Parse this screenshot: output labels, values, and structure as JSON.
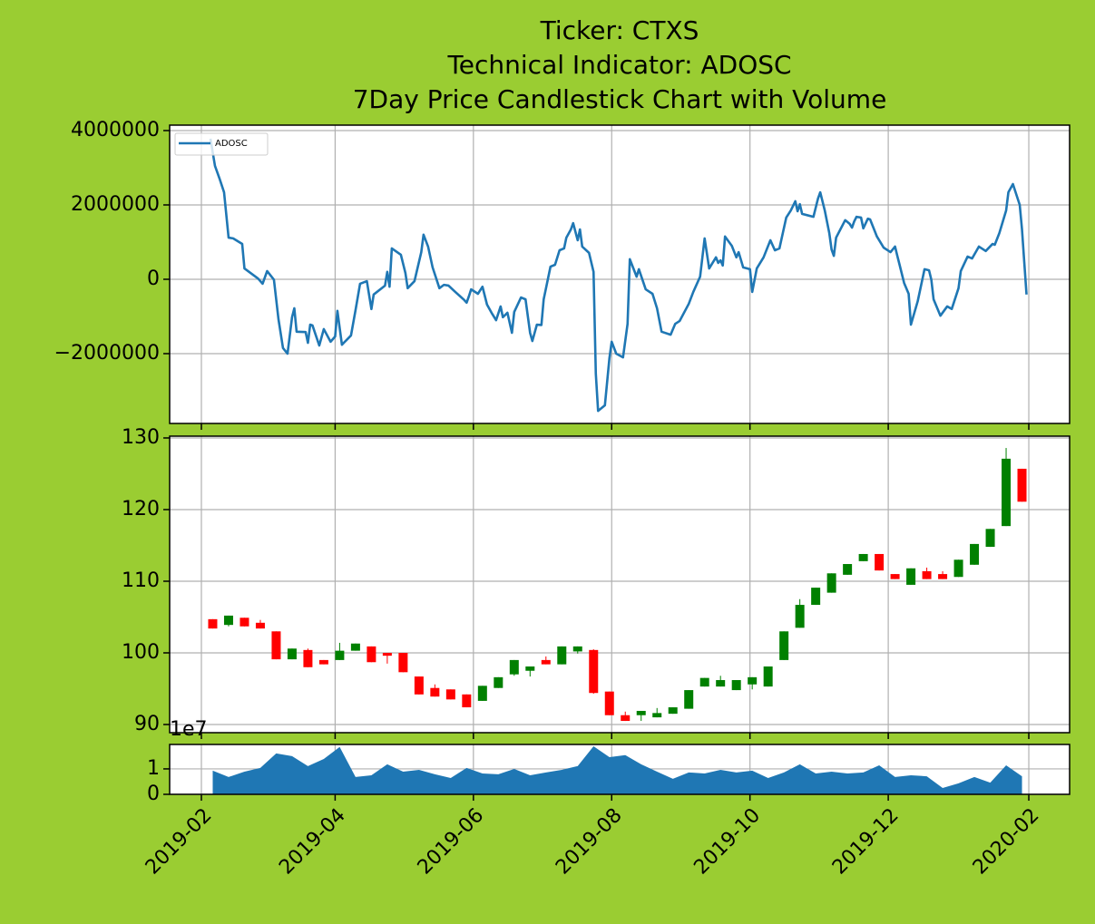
{
  "chart_data": [
    {
      "type": "line",
      "title": [
        "Ticker: CTXS",
        "Technical Indicator: ADOSC",
        "7Day Price Candlestick Chart with Volume"
      ],
      "x": [
        17932,
        17934,
        17936,
        17938,
        17940,
        17942,
        17946,
        17947,
        17953,
        17955,
        17957,
        17960,
        17962,
        17964,
        17966,
        17968,
        17969,
        17970,
        17974,
        17975,
        17976,
        17977,
        17980,
        17982,
        17985,
        17987,
        17988,
        17990,
        17994,
        17996,
        17998,
        18001,
        18003,
        18004,
        18009,
        18010,
        18011,
        18012,
        18016,
        18018,
        18019,
        18022,
        18025,
        18026,
        18028,
        18030,
        18033,
        18035,
        18037,
        18040,
        18044,
        18045,
        18046,
        18047,
        18050,
        18052,
        18054,
        18056,
        18058,
        18060,
        18061,
        18063,
        18065,
        18066,
        18069,
        18071,
        18073,
        18074,
        18076,
        18078,
        18079,
        18082,
        18084,
        18086,
        18088,
        18089,
        18091,
        18092,
        18094,
        18095,
        18096,
        18099,
        18101,
        18102,
        18103,
        18106,
        18108,
        18109,
        18111,
        18114,
        18116,
        18117,
        18120,
        18121,
        18124,
        18127,
        18129,
        18131,
        18135,
        18137,
        18139,
        18143,
        18145,
        18148,
        18150,
        18152,
        18155,
        18156,
        18157,
        18158,
        18159,
        18162,
        18164,
        18165,
        18167,
        18170,
        18171,
        18173,
        18176,
        18179,
        18181,
        18183,
        18186,
        18188,
        18190,
        18191,
        18192,
        18193,
        18198,
        18200,
        18201,
        18203,
        18205,
        18206,
        18207,
        18208,
        18212,
        18214,
        18215,
        18216,
        18217,
        18219,
        18220,
        18222,
        18223,
        18226,
        18229,
        18232,
        18234,
        18235,
        18236,
        18238,
        18240,
        18241,
        18244,
        18247,
        18249,
        18250,
        18251,
        18254,
        18257,
        18259,
        18262,
        18263,
        18266,
        18268,
        18271,
        18274,
        18277,
        18278,
        18280,
        18283,
        18284,
        18286,
        18289,
        18290,
        18291,
        18292
      ],
      "series": [
        {
          "name": "ADOSC",
          "color": "#1f77b4",
          "values": [
            3780000,
            3050000,
            2710000,
            2340000,
            1120000,
            1100000,
            950000,
            290000,
            20000,
            -120000,
            220000,
            -10000,
            -1070000,
            -1850000,
            -2000000,
            -1020000,
            -780000,
            -1410000,
            -1420000,
            -1710000,
            -1220000,
            -1240000,
            -1780000,
            -1340000,
            -1680000,
            -1540000,
            -850000,
            -1760000,
            -1510000,
            -830000,
            -120000,
            -50000,
            -800000,
            -410000,
            -170000,
            200000,
            -200000,
            830000,
            660000,
            170000,
            -240000,
            -50000,
            730000,
            1200000,
            880000,
            320000,
            -240000,
            -150000,
            -170000,
            -340000,
            -560000,
            -630000,
            -460000,
            -270000,
            -390000,
            -200000,
            -680000,
            -900000,
            -1100000,
            -730000,
            -1020000,
            -900000,
            -1440000,
            -880000,
            -490000,
            -540000,
            -1440000,
            -1660000,
            -1220000,
            -1230000,
            -540000,
            340000,
            390000,
            780000,
            830000,
            1120000,
            1340000,
            1510000,
            1050000,
            1340000,
            880000,
            710000,
            200000,
            -2540000,
            -3540000,
            -3390000,
            -2120000,
            -1680000,
            -2000000,
            -2100000,
            -1200000,
            540000,
            70000,
            270000,
            -270000,
            -390000,
            -780000,
            -1410000,
            -1490000,
            -1200000,
            -1120000,
            -660000,
            -340000,
            70000,
            1100000,
            290000,
            590000,
            440000,
            510000,
            370000,
            1150000,
            900000,
            590000,
            730000,
            320000,
            270000,
            -340000,
            290000,
            590000,
            1050000,
            780000,
            830000,
            1660000,
            1850000,
            2100000,
            1830000,
            2020000,
            1760000,
            1680000,
            2170000,
            2340000,
            1850000,
            1240000,
            800000,
            630000,
            1120000,
            1590000,
            1490000,
            1390000,
            1560000,
            1680000,
            1660000,
            1370000,
            1630000,
            1610000,
            1150000,
            850000,
            730000,
            880000,
            630000,
            390000,
            -100000,
            -390000,
            -1220000,
            -590000,
            270000,
            240000,
            -10000,
            -540000,
            -980000,
            -730000,
            -800000,
            -240000,
            220000,
            610000,
            560000,
            880000,
            760000,
            950000,
            930000,
            1240000,
            1850000,
            2340000,
            2560000,
            2000000,
            1340000,
            460000,
            -410000
          ]
        }
      ],
      "xlim": [
        17914,
        18311
      ],
      "xticks": [
        17928,
        17987,
        18048,
        18109,
        18170,
        18231,
        18293
      ],
      "ylim": [
        -3878000,
        4146000
      ],
      "yticks": [
        {
          "value": -2000000,
          "label": "−2000000"
        },
        0,
        2000000,
        4000000
      ],
      "grid": true,
      "legend": "upper left"
    },
    {
      "type": "candlestick",
      "x": [
        17933,
        17940,
        17947,
        17954,
        17961,
        17968,
        17975,
        17982,
        17989,
        17996,
        18003,
        18010,
        18017,
        18024,
        18031,
        18038,
        18045,
        18052,
        18059,
        18066,
        18073,
        18080,
        18087,
        18094,
        18101,
        18108,
        18115,
        18122,
        18129,
        18136,
        18143,
        18150,
        18157,
        18164,
        18171,
        18178,
        18185,
        18192,
        18199,
        18206,
        18213,
        18220,
        18227,
        18234,
        18241,
        18248,
        18255,
        18262,
        18269,
        18276,
        18283,
        18290
      ],
      "open": [
        104.7,
        103.9,
        104.9,
        104.2,
        103.0,
        99.1,
        100.4,
        99.0,
        99.0,
        100.3,
        100.9,
        100.0,
        100.0,
        96.7,
        95.1,
        94.9,
        94.2,
        93.3,
        95.1,
        97.0,
        97.5,
        99.0,
        98.4,
        100.2,
        100.4,
        94.6,
        91.3,
        91.3,
        91.0,
        91.5,
        92.2,
        95.3,
        95.3,
        94.8,
        95.6,
        95.3,
        99.0,
        103.5,
        106.7,
        108.4,
        110.9,
        112.8,
        113.8,
        111.0,
        109.5,
        111.4,
        111.0,
        110.6,
        112.3,
        114.8,
        117.7,
        125.7
      ],
      "high": [
        104.7,
        105.2,
        104.9,
        104.6,
        103.0,
        100.6,
        100.6,
        99.0,
        101.4,
        101.3,
        100.9,
        100.0,
        100.0,
        96.7,
        95.6,
        94.9,
        94.2,
        95.4,
        96.6,
        99.0,
        98.1,
        99.5,
        100.9,
        100.9,
        100.5,
        94.6,
        91.8,
        91.9,
        92.3,
        92.4,
        94.8,
        96.5,
        96.8,
        96.2,
        96.6,
        98.1,
        103.0,
        107.5,
        109.1,
        111.1,
        112.4,
        113.8,
        113.8,
        111.0,
        111.8,
        111.9,
        111.4,
        113.0,
        115.2,
        117.3,
        128.6,
        125.7
      ],
      "low": [
        103.4,
        103.7,
        103.7,
        103.4,
        99.1,
        99.1,
        98.0,
        98.4,
        99.0,
        100.3,
        98.7,
        98.5,
        97.3,
        94.2,
        93.9,
        93.5,
        92.4,
        93.3,
        95.1,
        96.8,
        96.7,
        98.4,
        98.4,
        99.9,
        94.3,
        91.3,
        90.5,
        90.5,
        91.0,
        91.5,
        92.2,
        95.3,
        95.3,
        94.8,
        94.9,
        95.3,
        99.0,
        103.5,
        106.7,
        108.4,
        110.9,
        112.8,
        111.5,
        110.3,
        109.5,
        110.3,
        110.3,
        110.6,
        112.3,
        114.8,
        117.7,
        121.1
      ],
      "close": [
        103.4,
        105.2,
        103.7,
        103.4,
        99.1,
        100.6,
        98.0,
        98.4,
        100.3,
        101.3,
        98.7,
        99.6,
        97.3,
        94.2,
        93.9,
        93.5,
        92.4,
        95.4,
        96.6,
        99.0,
        98.1,
        98.4,
        100.9,
        100.9,
        94.4,
        91.3,
        90.5,
        91.9,
        91.6,
        92.4,
        94.8,
        96.5,
        96.2,
        96.2,
        96.6,
        98.1,
        103.0,
        106.7,
        109.1,
        111.1,
        112.4,
        113.8,
        111.5,
        110.3,
        111.8,
        110.3,
        110.3,
        113.0,
        115.2,
        117.3,
        127.1,
        121.1
      ],
      "up_color": "green",
      "down_color": "red",
      "xlim": [
        17914,
        18311
      ],
      "xticks": [
        17928,
        17987,
        18048,
        18109,
        18170,
        18231,
        18293
      ],
      "ylim": [
        88.86,
        130.25
      ],
      "yticks": [
        90,
        100,
        110,
        120,
        130
      ],
      "grid": true
    },
    {
      "type": "area",
      "x": [
        17933,
        17940,
        17947,
        17954,
        17961,
        17968,
        17975,
        17982,
        17989,
        17996,
        18003,
        18010,
        18017,
        18024,
        18031,
        18038,
        18045,
        18052,
        18059,
        18066,
        18073,
        18080,
        18087,
        18094,
        18101,
        18108,
        18115,
        18122,
        18129,
        18136,
        18143,
        18150,
        18157,
        18164,
        18171,
        18178,
        18185,
        18192,
        18199,
        18206,
        18213,
        18220,
        18227,
        18234,
        18241,
        18248,
        18255,
        18262,
        18269,
        18276,
        18283,
        18290
      ],
      "values": [
        0.93,
        0.68,
        0.89,
        1.04,
        1.61,
        1.5,
        1.11,
        1.39,
        1.86,
        0.68,
        0.75,
        1.18,
        0.89,
        0.96,
        0.79,
        0.64,
        1.04,
        0.82,
        0.79,
        1.0,
        0.75,
        0.86,
        0.96,
        1.11,
        1.89,
        1.46,
        1.54,
        1.18,
        0.89,
        0.61,
        0.86,
        0.82,
        0.96,
        0.86,
        0.93,
        0.64,
        0.86,
        1.18,
        0.82,
        0.89,
        0.82,
        0.86,
        1.14,
        0.68,
        0.75,
        0.71,
        0.25,
        0.43,
        0.68,
        0.46,
        1.14,
        0.71
      ],
      "color": "#1f77b4",
      "offset_text": "1e7",
      "xlim": [
        17914,
        18311
      ],
      "xticks": [
        {
          "value": 17928,
          "label": "2019-02"
        },
        {
          "value": 17987,
          "label": "2019-04"
        },
        {
          "value": 18048,
          "label": "2019-06"
        },
        {
          "value": 18109,
          "label": "2019-08"
        },
        {
          "value": 18170,
          "label": "2019-10"
        },
        {
          "value": 18231,
          "label": "2019-12"
        },
        {
          "value": 18293,
          "label": "2020-02"
        }
      ],
      "ylim": [
        0,
        1.96
      ],
      "yticks": [
        0,
        1
      ],
      "grid": true
    }
  ]
}
